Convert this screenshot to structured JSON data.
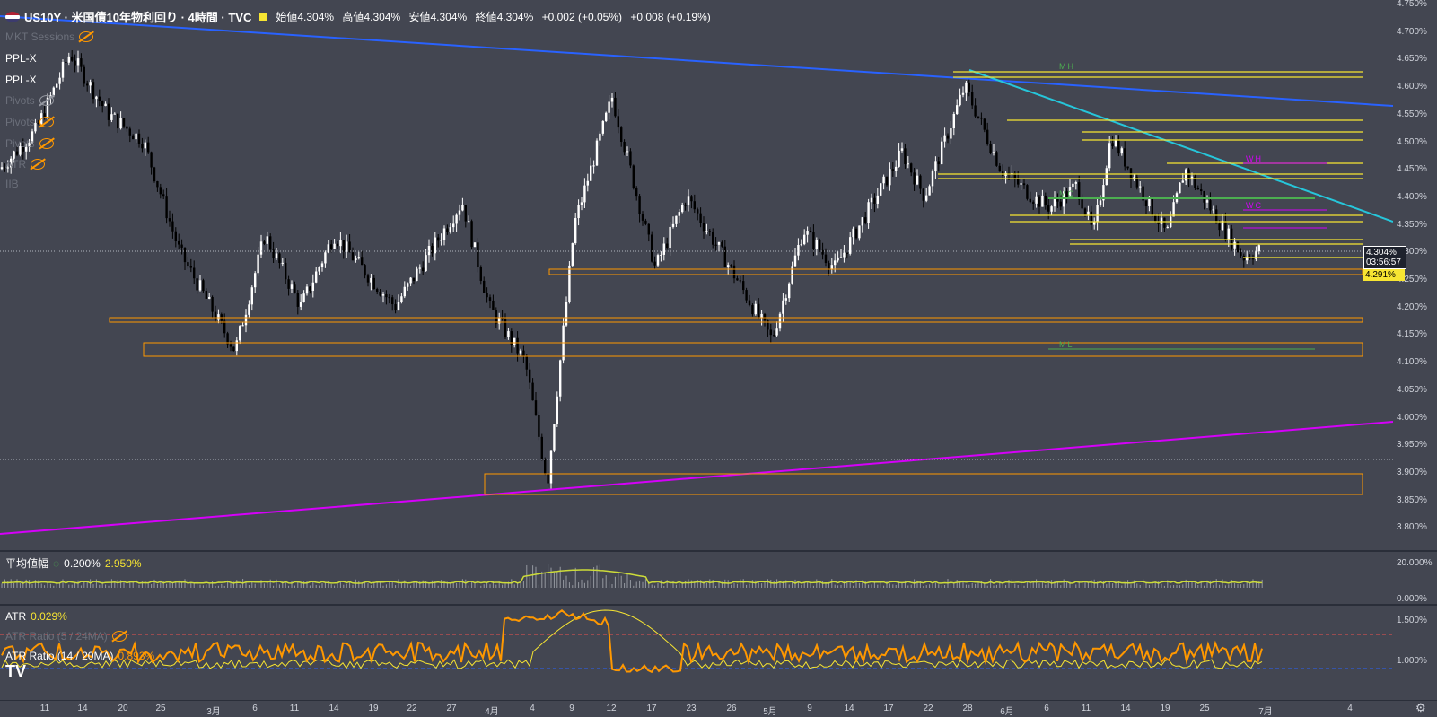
{
  "header": {
    "symbol": "US10Y",
    "name": "米国債10年物利回り",
    "interval": "4時間",
    "source": "TVC",
    "ohlc": {
      "open_label": "始値",
      "open": "4.304%",
      "high_label": "高値",
      "high": "4.304%",
      "low_label": "安値",
      "low": "4.304%",
      "close_label": "終値",
      "close": "4.304%",
      "change": "+0.002 (+0.05%)",
      "change2": "+0.008 (+0.19%)"
    }
  },
  "indicators": {
    "mkt_sessions": "MKT Sessions",
    "ppl1": "PPL-X",
    "ppl2": "PPL-X",
    "pivots1": "Pivots",
    "pivots2": "Pivots",
    "pivots3": "Pivots",
    "oth": "ATR",
    "ind_line": "IIB"
  },
  "price_axis": {
    "ticks": [
      "4.750%",
      "4.700%",
      "4.650%",
      "4.600%",
      "4.550%",
      "4.500%",
      "4.450%",
      "4.400%",
      "4.350%",
      "4.300%",
      "4.250%",
      "4.200%",
      "4.150%",
      "4.100%",
      "4.050%",
      "4.000%",
      "3.950%",
      "3.900%",
      "3.850%",
      "3.800%"
    ],
    "current_price": "4.304%",
    "countdown": "03:56:57",
    "level_price": "4.291%"
  },
  "level_labels": {
    "mh": "MH",
    "mc": "MC",
    "ml": "ML",
    "wh": "WH",
    "wc": "WC"
  },
  "avg_pane": {
    "title": "平均値幅",
    "v1": "0.200%",
    "v2": "2.950%",
    "ticks": [
      "20.000%",
      "0.000%"
    ]
  },
  "atr_pane": {
    "title": "ATR",
    "value": "0.029%",
    "ratio1_label": "ATR Ratio (5 / 24MA)",
    "ratio2_label": "ATR Ratio (14 / 20MA)",
    "ratio2_value": "0.893%",
    "ticks": [
      "1.500%",
      "1.000%"
    ]
  },
  "time_axis": {
    "labels": [
      "11",
      "14",
      "20",
      "25",
      "3月",
      "6",
      "11",
      "14",
      "19",
      "22",
      "27",
      "4月",
      "4",
      "9",
      "12",
      "17",
      "23",
      "26",
      "5月",
      "9",
      "14",
      "17",
      "22",
      "28",
      "6月",
      "6",
      "11",
      "14",
      "19",
      "25",
      "7月",
      "4"
    ]
  },
  "colors": {
    "background": "#434651",
    "orange": "#ff9800",
    "yellow": "#f7e532",
    "blue": "#2962ff",
    "cyan": "#26c6da",
    "magenta": "#d500f9",
    "green": "#4caf50"
  }
}
